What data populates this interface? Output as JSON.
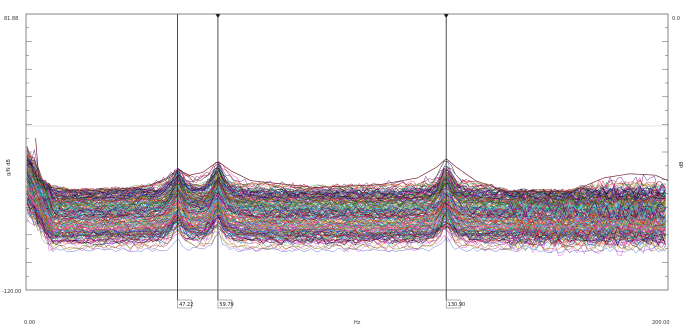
{
  "chart_data": {
    "type": "line",
    "title": "",
    "xlabel": "Hz",
    "ylabel": "g/N dB",
    "right_axis_label": "dB",
    "xlim": [
      0.0,
      200.0
    ],
    "ylim": [
      -120.0,
      81.88
    ],
    "x_tick_labels": {
      "min": "0.00",
      "max": "200.00"
    },
    "y_tick_labels": {
      "top": "81.88",
      "bottom": "-120.00"
    },
    "right_tick_labels": {
      "top": "0.0"
    },
    "grid": false,
    "legend": "none",
    "series_count": 200,
    "curve_palette": [
      "#e6194b",
      "#3cb44b",
      "#4363d8",
      "#f58231",
      "#911eb4",
      "#46f0f0",
      "#f032e6",
      "#9a6324",
      "#800000",
      "#008080",
      "#000075",
      "#808000",
      "#00a86b",
      "#ff1493",
      "#1e90ff",
      "#ff8c00",
      "#2f4f4f",
      "#8b008b",
      "#006400",
      "#b22222",
      "#daa520",
      "#000000",
      "#4b0082",
      "#20b2aa"
    ],
    "resonance_peaks_hz": [
      47.22,
      59.79,
      130.9
    ],
    "envelope": {
      "x": [
        0,
        2,
        4,
        8,
        14,
        20,
        30,
        38,
        44,
        47.2,
        51,
        55,
        59.8,
        64,
        70,
        90,
        110,
        122,
        128,
        130.9,
        134,
        140,
        150,
        170,
        180,
        188,
        196,
        200
      ],
      "y": [
        50,
        20,
        -38,
        -45,
        -47,
        -47,
        -46,
        -44,
        -38,
        -32,
        -36,
        -34,
        -26,
        -33,
        -40,
        -45,
        -43,
        -38,
        -30,
        -24,
        -30,
        -40,
        -48,
        -48,
        -38,
        -35,
        -36,
        -40
      ]
    },
    "cursors": [
      {
        "x": 47.22,
        "label": "47.22",
        "marker": "none"
      },
      {
        "x": 59.79,
        "label": "59.79",
        "marker": "triangle"
      },
      {
        "x": 130.9,
        "label": "130.90",
        "marker": "triangle"
      }
    ],
    "reference_line_y": 0
  }
}
